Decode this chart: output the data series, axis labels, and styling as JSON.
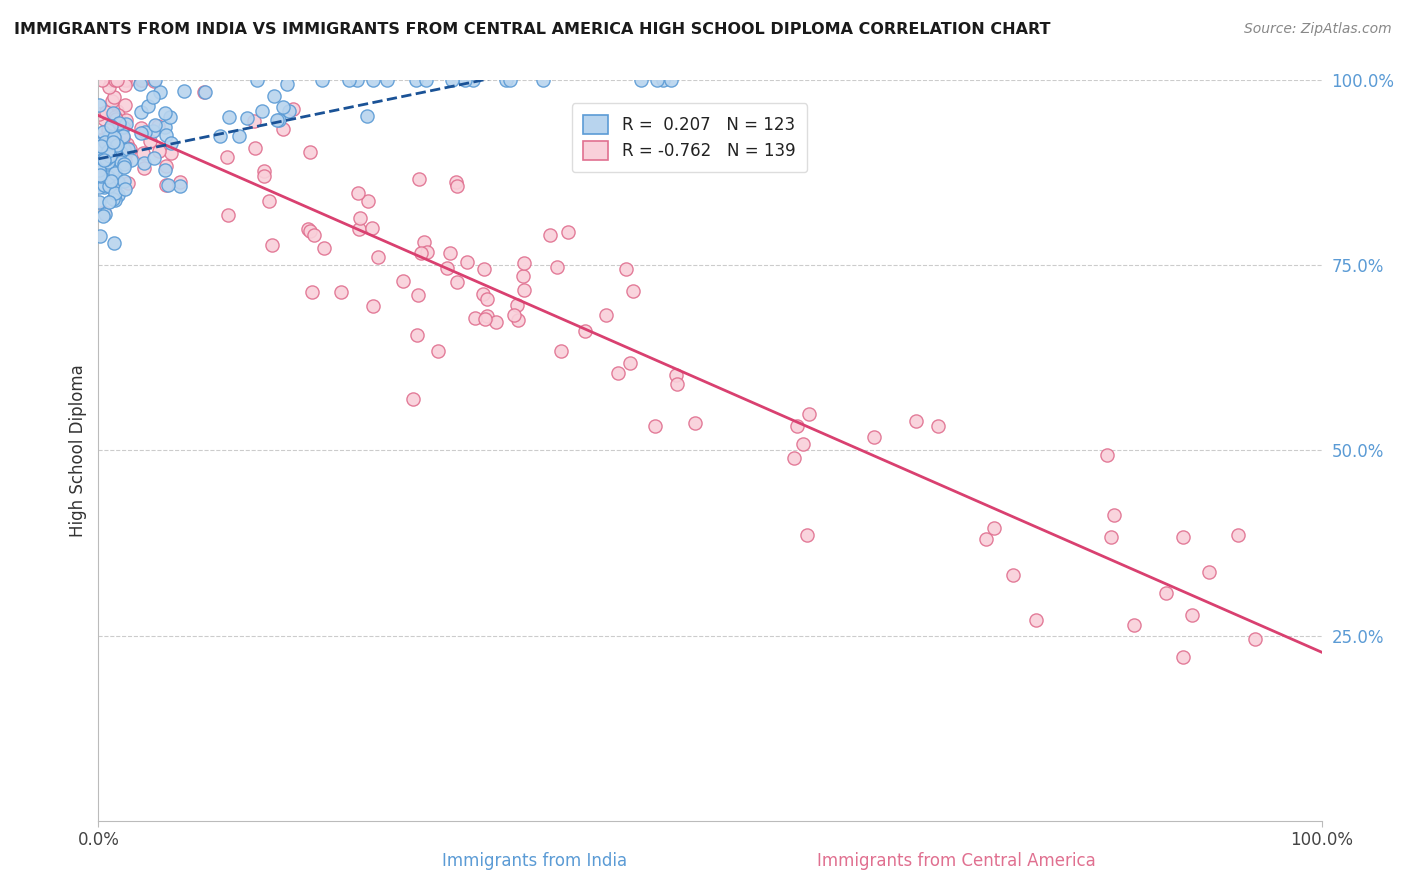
{
  "title": "IMMIGRANTS FROM INDIA VS IMMIGRANTS FROM CENTRAL AMERICA HIGH SCHOOL DIPLOMA CORRELATION CHART",
  "source": "Source: ZipAtlas.com",
  "ylabel": "High School Diploma",
  "legend_line1": "R =  0.207   N = 123",
  "legend_line2": "R = -0.762   N = 139",
  "blue_face": "#b8d4ee",
  "blue_edge": "#5b9bd5",
  "pink_face": "#f9d0da",
  "pink_edge": "#e07090",
  "blue_line_color": "#1a5296",
  "pink_line_color": "#d94070",
  "label_india": "Immigrants from India",
  "label_central": "Immigrants from Central America",
  "N_india": 123,
  "N_central": 139,
  "seed": 7
}
